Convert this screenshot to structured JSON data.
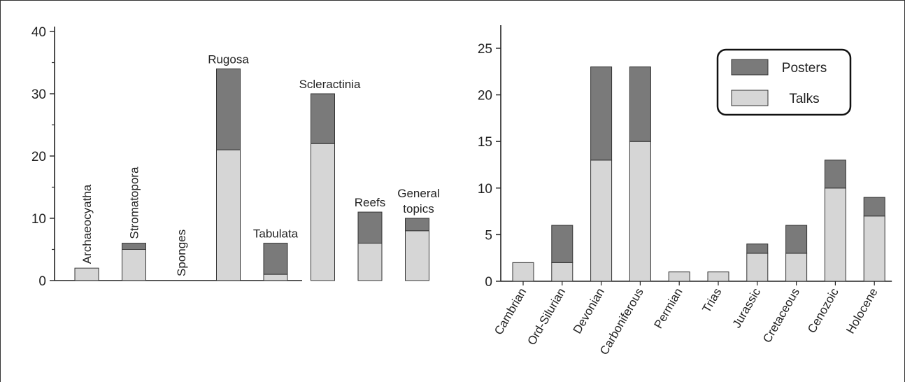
{
  "chart_data": [
    {
      "type": "bar",
      "stacked": true,
      "categories": [
        "Archaeocyatha",
        "Stromatopora",
        "Sponges",
        "Rugosa",
        "Tabulata",
        "Scleractinia",
        "Reefs",
        "General topics"
      ],
      "series": [
        {
          "name": "Talks",
          "values": [
            2,
            5,
            0,
            21,
            1,
            22,
            6,
            8
          ]
        },
        {
          "name": "Posters",
          "values": [
            0,
            1,
            0,
            13,
            5,
            8,
            5,
            2
          ]
        }
      ],
      "ylim": [
        0,
        40
      ],
      "yticks": [
        "0",
        "10",
        "20",
        "30",
        "40"
      ],
      "label_placement": "above-bars",
      "colors": {
        "Talks": "#d6d6d6",
        "Posters": "#7a7a7a"
      },
      "grid": false
    },
    {
      "type": "bar",
      "stacked": true,
      "categories": [
        "Cambrian",
        "Ord-Silurian",
        "Devonian",
        "Carboniferous",
        "Permian",
        "Trias",
        "Jurassic",
        "Cretaceous",
        "Cenozoic",
        "Holocene"
      ],
      "series": [
        {
          "name": "Talks",
          "values": [
            2,
            2,
            13,
            15,
            1,
            1,
            3,
            3,
            10,
            7
          ]
        },
        {
          "name": "Posters",
          "values": [
            0,
            4,
            10,
            8,
            0,
            0,
            1,
            3,
            3,
            2
          ]
        }
      ],
      "ylim": [
        0,
        27
      ],
      "yticks": [
        "0",
        "5",
        "10",
        "15",
        "20",
        "25"
      ],
      "legend": {
        "placement": "top-right",
        "entries": [
          "Posters",
          "Talks"
        ]
      },
      "label_placement": "rotated-below",
      "colors": {
        "Talks": "#d6d6d6",
        "Posters": "#7a7a7a"
      },
      "grid": false
    }
  ]
}
